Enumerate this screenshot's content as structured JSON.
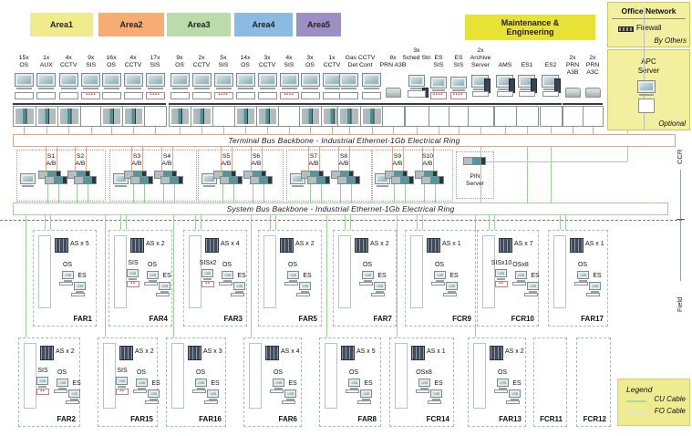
{
  "top_row": {
    "area_groups": [
      {
        "label": "Area1",
        "color": "#f0ec8e",
        "devices": [
          {
            "count": "15x",
            "name": "OS"
          },
          {
            "count": "1x",
            "name": "AUX"
          },
          {
            "count": "4x",
            "name": "CCTV"
          },
          {
            "count": "9x",
            "name": "SIS"
          }
        ]
      },
      {
        "label": "Area2",
        "color": "#f5ad74",
        "devices": [
          {
            "count": "16x",
            "name": "OS"
          },
          {
            "count": "4x",
            "name": "CCTV"
          },
          {
            "count": "17x",
            "name": "SIS"
          }
        ]
      },
      {
        "label": "Area3",
        "color": "#badcab",
        "devices": [
          {
            "count": "9x",
            "name": "OS"
          },
          {
            "count": "2x",
            "name": "CCTV"
          },
          {
            "count": "5x",
            "name": "SIS"
          }
        ]
      },
      {
        "label": "Area4",
        "color": "#8bbbe3",
        "devices": [
          {
            "count": "14x",
            "name": "OS"
          },
          {
            "count": "3x",
            "name": "CCTV"
          },
          {
            "count": "4x",
            "name": "SIS"
          }
        ]
      },
      {
        "label": "Area5",
        "color": "#9d8fc3",
        "devices": [
          {
            "count": "3x",
            "name": "OS"
          },
          {
            "count": "1x",
            "name": "CCTV"
          }
        ]
      }
    ],
    "gas": {
      "line1": "Gas CCTV",
      "line2": "Det Cont"
    },
    "maintenance": {
      "header": [
        "Maintenance &",
        "Engineering"
      ],
      "color": "#e9e236",
      "devices": [
        {
          "count": "8x",
          "name": "PRN A3B",
          "icon": "printer-icon"
        },
        {
          "count": "3x",
          "name": "Sched Stn",
          "icon": "workstation-icon"
        },
        {
          "count": "ES",
          "name": "SIS",
          "icon": "sis-station-icon"
        },
        {
          "count": "ES",
          "name": "SIS",
          "icon": "sis-station-icon"
        },
        {
          "count": "2x",
          "name": "Archive Server",
          "icon": "server-icon"
        },
        {
          "count": "",
          "name": "AMS",
          "icon": "server-icon"
        },
        {
          "count": "",
          "name": "ES1",
          "icon": "server-icon"
        },
        {
          "count": "",
          "name": "ES2",
          "icon": "server-icon"
        },
        {
          "count": "2x",
          "name": "PRN A3B",
          "icon": "printer-icon"
        },
        {
          "count": "2x",
          "name": "PRN A3C",
          "icon": "printer-icon"
        }
      ]
    }
  },
  "office": {
    "title": "Office Network",
    "firewall": "Firewall",
    "by_others": "By Others",
    "apc_line1": "APC",
    "apc_line2": "Server",
    "optional": "Optional"
  },
  "terminal_bus": "Terminal Bus Backbone - Industrial Ethernet-1Gb Electrical Ring",
  "system_bus": "System Bus Backbone - Industrial Ethernet-1Gb Electrical Ring",
  "servers": {
    "groups": [
      [
        "S1",
        "S2"
      ],
      [
        "S3",
        "S4"
      ],
      [
        "S5",
        "S6"
      ],
      [
        "S7",
        "S8"
      ],
      [
        "S9",
        "S10"
      ]
    ],
    "suffix": "A/B"
  },
  "pin_server": {
    "line1": "PIN",
    "line2": "Server"
  },
  "zones": {
    "ccr": "CCR",
    "field": "Field"
  },
  "field": {
    "rows": [
      [
        {
          "name": "FAR1",
          "as": "AS x 5",
          "os": "OS",
          "es": "ES"
        },
        {
          "name": "FAR4",
          "as": "AS x 2",
          "sis": "SIS",
          "os": "OS",
          "es": "ES"
        },
        {
          "name": "FAR3",
          "as": "AS x 4",
          "sis": "SISx2",
          "os": "OS",
          "es": "ES"
        },
        {
          "name": "FAR5",
          "as": "AS x 2",
          "os": "OS",
          "es": "ES"
        },
        {
          "name": "FAR7",
          "as": "AS x 2",
          "os": "OS",
          "es": "ES"
        },
        {
          "name": "FCR9",
          "as": "AS x 1",
          "os": "OS",
          "es": "ES"
        },
        {
          "name": "FCR10",
          "as": "AS x 7",
          "sis": "SISx10",
          "os": "OSx8",
          "es": "ES"
        },
        {
          "name": "FAR17",
          "as": "AS x 1",
          "os": "OS",
          "es": "ES"
        }
      ],
      [
        {
          "name": "FAR2",
          "as": "AS x 2",
          "sis": "SIS",
          "os": "OS",
          "es": "ES"
        },
        {
          "name": "FAR15",
          "as": "AS x 2",
          "sis": "SIS",
          "os": "OS",
          "es": "ES"
        },
        {
          "name": "FAR16",
          "as": "AS x 3",
          "os": "OS",
          "es": "ES"
        },
        {
          "name": "FAR6",
          "as": "AS x 4",
          "os": "OS",
          "es": "ES"
        },
        {
          "name": "FAR8",
          "as": "AS x 5",
          "os": "OS",
          "es": "ES"
        },
        {
          "name": "FCR14",
          "as": "AS x 1",
          "os": "OSx8",
          "es": "ES"
        },
        {
          "name": "FAR13",
          "as": "AS x 2",
          "os": "OS",
          "es": "ES"
        },
        {
          "name": "FCR11",
          "empty": true
        },
        {
          "name": "FCR12",
          "empty": true
        }
      ]
    ]
  },
  "legend": {
    "title": "Legend",
    "items": [
      {
        "label": "CU Cable",
        "color": "#a9d6a2"
      },
      {
        "label": "FO Cable",
        "color": "#d6e9d0"
      }
    ]
  },
  "colors": {
    "terminal_line": "#e7a78d",
    "cu_line": "#9fcf9b",
    "fo_line": "#cfe5cb",
    "grey_line": "#b7bec6",
    "terminal_band_border": "#dfa489",
    "system_band_border": "#a8cfa2"
  }
}
